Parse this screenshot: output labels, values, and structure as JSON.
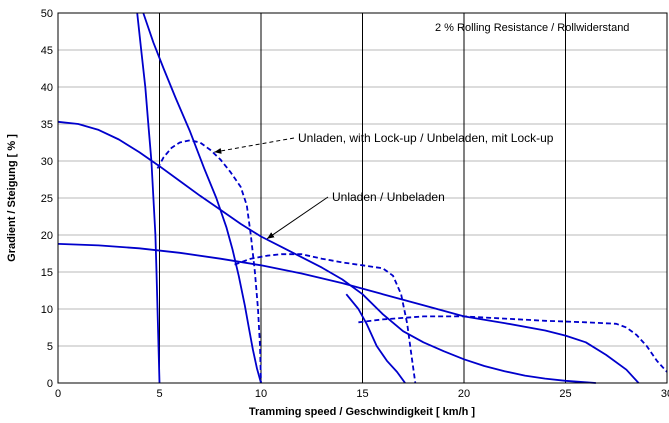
{
  "chart_data": {
    "type": "line",
    "title": "",
    "xlabel": "Tramming speed / Geschwindigkeit   [ km/h ]",
    "ylabel": "Gradient / Steigung   [ % ]",
    "xlim": [
      0,
      30
    ],
    "ylim": [
      0,
      50
    ],
    "xticks": [
      0,
      5,
      10,
      15,
      20,
      25,
      30
    ],
    "yticks": [
      0,
      5,
      10,
      15,
      20,
      25,
      30,
      35,
      40,
      45,
      50
    ],
    "vertical_gridlines_at": [
      5,
      10,
      15,
      20,
      25
    ],
    "horizontal_grid": true,
    "note": "2 % Rolling Resistance / Rollwiderstand",
    "line_color": "#0000cc",
    "series": [
      {
        "style": "solid",
        "points": [
          [
            0,
            35.3
          ],
          [
            1,
            35
          ],
          [
            2,
            34.2
          ],
          [
            3,
            32.9
          ],
          [
            4,
            31.2
          ],
          [
            5,
            29.3
          ],
          [
            6,
            27.3
          ],
          [
            7,
            25.3
          ],
          [
            8,
            23.4
          ],
          [
            9,
            21.5
          ],
          [
            10,
            19.8
          ],
          [
            11,
            18.4
          ],
          [
            12,
            17
          ],
          [
            13,
            15.6
          ],
          [
            14,
            14
          ],
          [
            15,
            12
          ],
          [
            16,
            9.3
          ],
          [
            17,
            7
          ],
          [
            18,
            5.5
          ],
          [
            19,
            4.3
          ],
          [
            20,
            3.2
          ],
          [
            21,
            2.3
          ],
          [
            22,
            1.6
          ],
          [
            23,
            1
          ],
          [
            24,
            0.6
          ],
          [
            25,
            0.3
          ],
          [
            26,
            0.1
          ],
          [
            26.5,
            0
          ]
        ]
      },
      {
        "style": "solid",
        "points": [
          [
            0,
            18.8
          ],
          [
            2,
            18.6
          ],
          [
            4,
            18.2
          ],
          [
            6,
            17.6
          ],
          [
            8,
            16.8
          ],
          [
            10,
            15.9
          ],
          [
            12,
            14.8
          ],
          [
            14,
            13.5
          ],
          [
            16,
            12
          ],
          [
            18,
            10.5
          ],
          [
            20,
            9
          ],
          [
            22,
            8.1
          ],
          [
            24,
            7.1
          ],
          [
            25,
            6.4
          ],
          [
            26,
            5.5
          ],
          [
            27,
            3.8
          ],
          [
            28,
            1.8
          ],
          [
            28.6,
            0
          ]
        ]
      },
      {
        "style": "solid",
        "points": [
          [
            3.9,
            50
          ],
          [
            4.1,
            45
          ],
          [
            4.3,
            40
          ],
          [
            4.45,
            35
          ],
          [
            4.6,
            30
          ],
          [
            4.7,
            25
          ],
          [
            4.8,
            20
          ],
          [
            4.85,
            15
          ],
          [
            4.9,
            10
          ],
          [
            4.95,
            5
          ],
          [
            5,
            0
          ]
        ]
      },
      {
        "style": "solid",
        "points": [
          [
            4.2,
            50
          ],
          [
            4.7,
            46
          ],
          [
            5.2,
            42.5
          ],
          [
            5.8,
            38.5
          ],
          [
            6.5,
            34
          ],
          [
            7.2,
            29
          ],
          [
            7.8,
            25
          ],
          [
            8.3,
            21
          ],
          [
            8.6,
            18
          ],
          [
            8.9,
            14.5
          ],
          [
            9.2,
            10.5
          ],
          [
            9.4,
            7.5
          ],
          [
            9.6,
            4.5
          ],
          [
            9.8,
            2
          ],
          [
            10,
            0
          ]
        ]
      },
      {
        "style": "solid",
        "points": [
          [
            14.2,
            12
          ],
          [
            14.8,
            10
          ],
          [
            15.2,
            8
          ],
          [
            15.7,
            5
          ],
          [
            16.2,
            3
          ],
          [
            16.7,
            1.5
          ],
          [
            17.1,
            0
          ]
        ]
      },
      {
        "style": "dashed",
        "points": [
          [
            4.9,
            29
          ],
          [
            5.2,
            30.5
          ],
          [
            5.6,
            31.8
          ],
          [
            6,
            32.5
          ],
          [
            6.5,
            32.8
          ],
          [
            7,
            32.5
          ],
          [
            7.5,
            31.5
          ],
          [
            8,
            30.2
          ],
          [
            8.5,
            28.5
          ],
          [
            9,
            26.5
          ],
          [
            9.3,
            24
          ],
          [
            9.5,
            20
          ],
          [
            9.7,
            15
          ],
          [
            9.85,
            10
          ],
          [
            9.95,
            5
          ],
          [
            10,
            0
          ]
        ]
      },
      {
        "style": "dashed",
        "points": [
          [
            8.7,
            16
          ],
          [
            9.5,
            16.8
          ],
          [
            10.3,
            17.2
          ],
          [
            11,
            17.4
          ],
          [
            12,
            17.4
          ],
          [
            13,
            16.8
          ],
          [
            14,
            16.3
          ],
          [
            15,
            15.9
          ],
          [
            16,
            15.5
          ],
          [
            16.5,
            14.5
          ],
          [
            16.9,
            12
          ],
          [
            17.2,
            8
          ],
          [
            17.4,
            4
          ],
          [
            17.6,
            0
          ]
        ]
      },
      {
        "style": "dashed",
        "points": [
          [
            14.8,
            8.2
          ],
          [
            16,
            8.6
          ],
          [
            18,
            9
          ],
          [
            20,
            9
          ],
          [
            22,
            8.7
          ],
          [
            24,
            8.4
          ],
          [
            26,
            8.2
          ],
          [
            27.5,
            8
          ],
          [
            28,
            7.5
          ],
          [
            28.5,
            6.5
          ],
          [
            29,
            5
          ],
          [
            29.5,
            3
          ],
          [
            30,
            1.5
          ]
        ]
      }
    ],
    "annotations": [
      {
        "text": "Unladen, with Lock-up / Unbeladen, mit Lock-up",
        "arrow_to": [
          7.7,
          31.2
        ],
        "style": "dashed"
      },
      {
        "text": "Unladen / Unbeladen",
        "arrow_to": [
          10.3,
          19.5
        ],
        "style": "solid"
      }
    ]
  }
}
